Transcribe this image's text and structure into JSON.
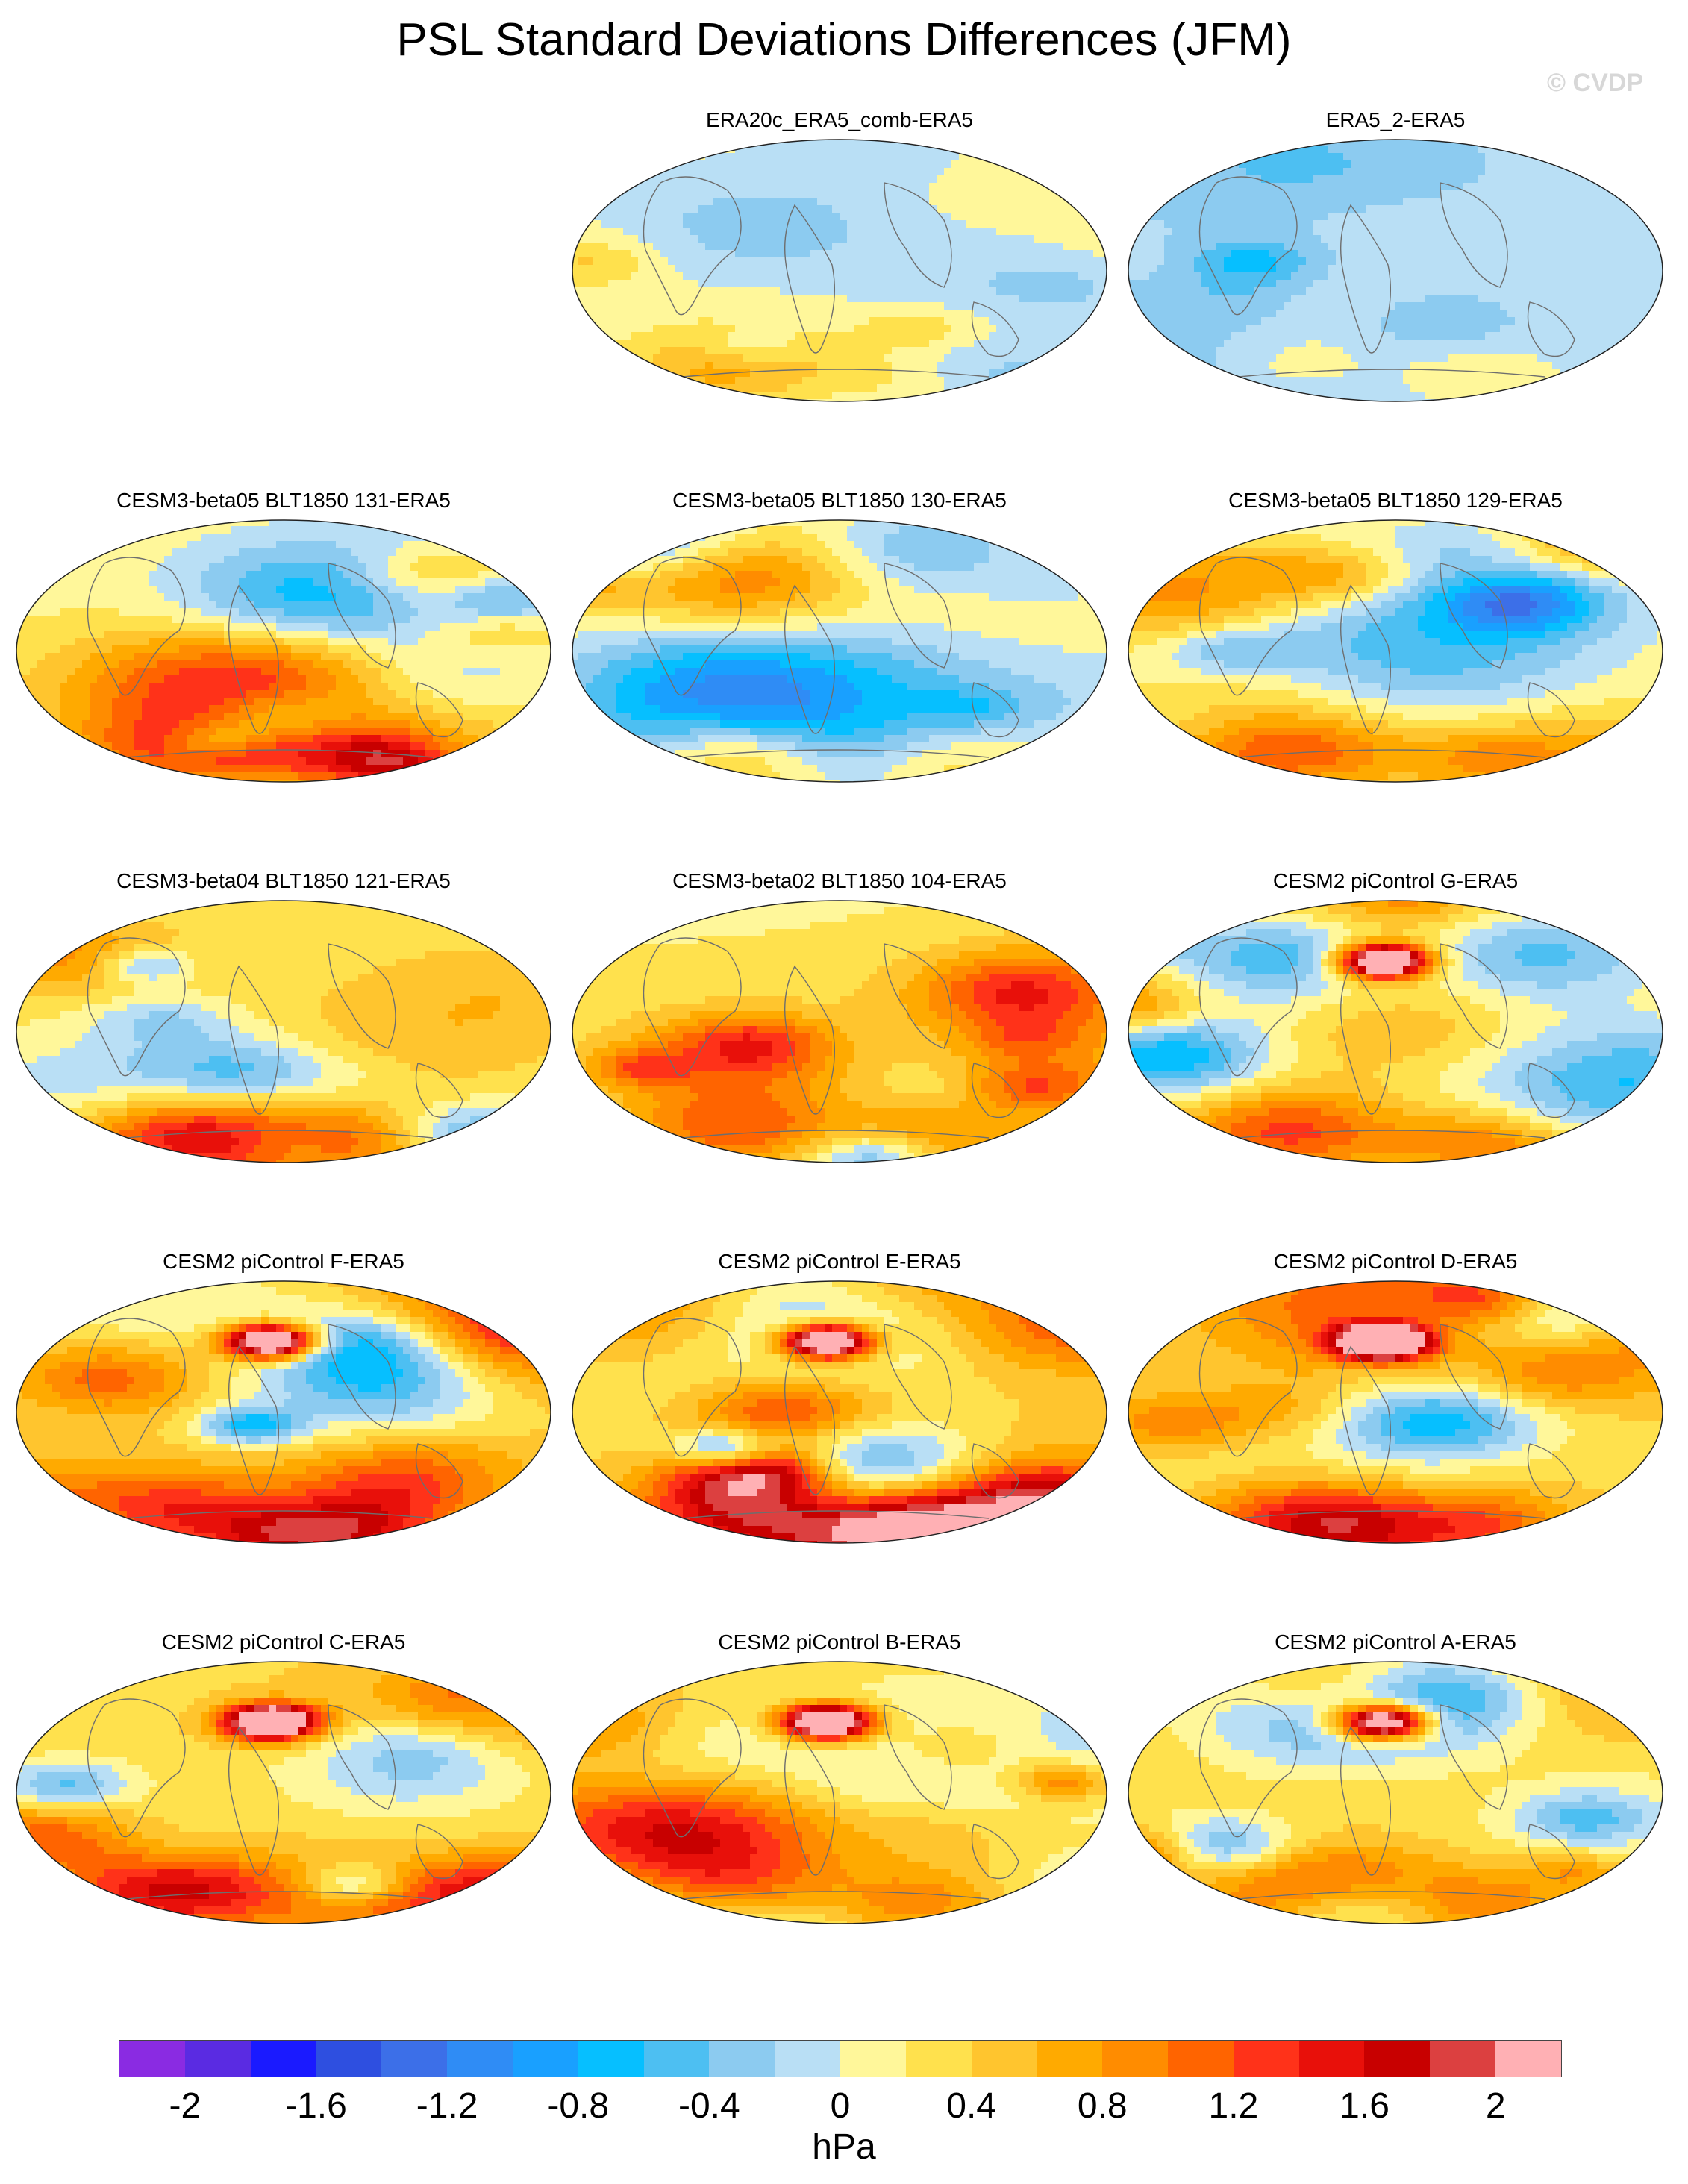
{
  "title": "PSL Standard Deviations Differences (JFM)",
  "watermark": "© CVDP",
  "panels": [
    {
      "title": "ERA20c_ERA5_comb-ERA5",
      "seed": 3,
      "strength": 0.45,
      "bias": 0.05,
      "hot_spot": false
    },
    {
      "title": "ERA5_2-ERA5",
      "seed": 7,
      "strength": 0.5,
      "bias": -0.15,
      "hot_spot": false
    },
    {
      "title": "CESM3-beta05 BLT1850 131-ERA5",
      "seed": 11,
      "strength": 1.1,
      "bias": 0.15,
      "hot_spot": false
    },
    {
      "title": "CESM3-beta05 BLT1850 130-ERA5",
      "seed": 13,
      "strength": 1.05,
      "bias": 0.15,
      "hot_spot": false
    },
    {
      "title": "CESM3-beta05 BLT1850 129-ERA5",
      "seed": 17,
      "strength": 1.15,
      "bias": 0.15,
      "hot_spot": false
    },
    {
      "title": "CESM3-beta04 BLT1850 121-ERA5",
      "seed": 19,
      "strength": 0.9,
      "bias": 0.2,
      "hot_spot": false
    },
    {
      "title": "CESM3-beta02 BLT1850 104-ERA5",
      "seed": 23,
      "strength": 0.95,
      "bias": 0.2,
      "hot_spot": false
    },
    {
      "title": "CESM2 piControl G-ERA5",
      "seed": 29,
      "strength": 1.1,
      "bias": 0.4,
      "hot_spot": true
    },
    {
      "title": "CESM2 piControl F-ERA5",
      "seed": 31,
      "strength": 1.1,
      "bias": 0.4,
      "hot_spot": true
    },
    {
      "title": "CESM2 piControl E-ERA5",
      "seed": 37,
      "strength": 1.05,
      "bias": 0.35,
      "hot_spot": true
    },
    {
      "title": "CESM2 piControl D-ERA5",
      "seed": 41,
      "strength": 1.05,
      "bias": 0.35,
      "hot_spot": true
    },
    {
      "title": "CESM2 piControl C-ERA5",
      "seed": 43,
      "strength": 1.0,
      "bias": 0.35,
      "hot_spot": true
    },
    {
      "title": "CESM2 piControl B-ERA5",
      "seed": 47,
      "strength": 1.0,
      "bias": 0.3,
      "hot_spot": true
    },
    {
      "title": "CESM2 piControl A-ERA5",
      "seed": 53,
      "strength": 1.0,
      "bias": 0.3,
      "hot_spot": true
    }
  ],
  "colorbar": {
    "colors": [
      "#8a2be2",
      "#5a2be2",
      "#1a1aff",
      "#2e4fe0",
      "#3c6fe8",
      "#2f8cf5",
      "#19a0ff",
      "#06bfff",
      "#4dbff2",
      "#8ccbf0",
      "#b9dff5",
      "#fff79a",
      "#ffe14d",
      "#ffc52e",
      "#ffaa00",
      "#ff8c00",
      "#ff6400",
      "#ff3219",
      "#e8100a",
      "#c80000",
      "#dc4040",
      "#ffb0b4"
    ],
    "tick_labels": [
      "-2",
      "-1.6",
      "-1.2",
      "-0.8",
      "-0.4",
      "0",
      "0.4",
      "0.8",
      "1.2",
      "1.6",
      "2"
    ],
    "tick_values": [
      -2,
      -1.6,
      -1.2,
      -0.8,
      -0.4,
      0,
      0.4,
      0.8,
      1.2,
      1.6,
      2
    ],
    "min": -2.2,
    "max": 2.2,
    "units": "hPa"
  }
}
